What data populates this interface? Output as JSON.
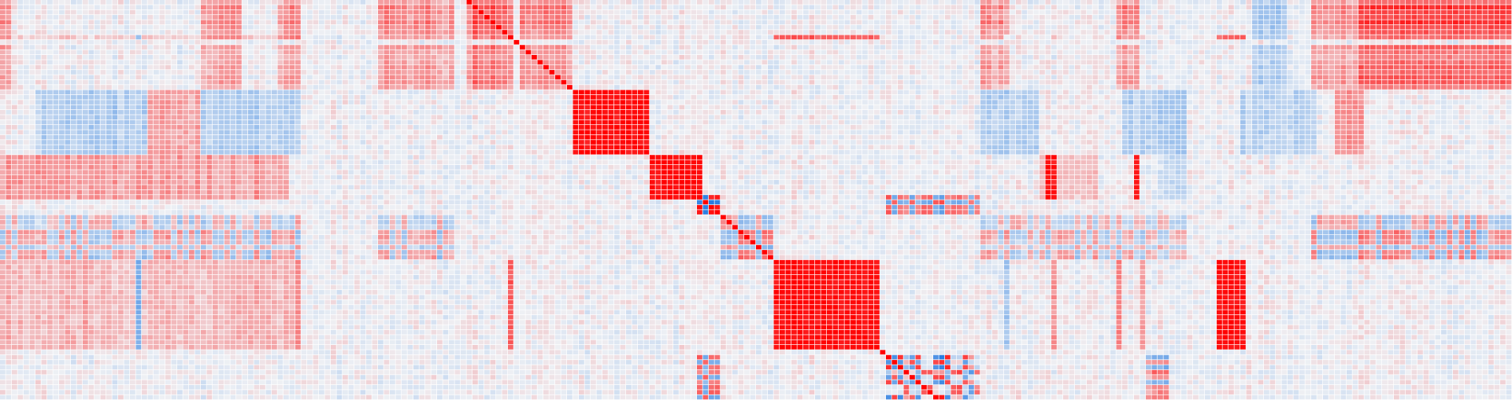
{
  "chart_data": {
    "type": "heatmap",
    "title": "",
    "xlabel": "",
    "ylabel": "",
    "value_range": [
      -1,
      1
    ],
    "n_rows": 80,
    "n_cols": 256,
    "row_variables_start": 79,
    "col_variables_start": 0,
    "grid": true,
    "legend": "none",
    "colors": {
      "negative": "#1f77e0",
      "zero": "#eef0f4",
      "positive": "#ff0000",
      "gridline": "#ffffff"
    },
    "diagonal_value": 1,
    "factors": [
      {
        "members": [
          [
            230,
            255,
            0.9
          ],
          [
            79,
            86,
            0.88
          ],
          [
            166,
            170,
            0.6
          ],
          [
            0,
            1,
            0.6
          ],
          [
            64,
            76,
            0.62
          ],
          [
            34,
            40,
            0.6
          ],
          [
            47,
            50,
            0.6
          ],
          [
            88,
            96,
            0.7
          ],
          [
            189,
            192,
            0.6
          ],
          [
            222,
            229,
            0.6
          ],
          [
            212,
            217,
            -0.5
          ]
        ]
      },
      {
        "members": [
          [
            97,
            109,
            0.97
          ],
          [
            6,
            50,
            -0.3
          ],
          [
            25,
            33,
            0.35
          ],
          [
            226,
            230,
            0.4
          ],
          [
            166,
            175,
            -0.28
          ],
          [
            190,
            200,
            -0.3
          ],
          [
            210,
            222,
            -0.25
          ]
        ]
      },
      {
        "members": [
          [
            110,
            118,
            0.97
          ],
          [
            0,
            48,
            0.38
          ],
          [
            177,
            178,
            0.95
          ],
          [
            192,
            192,
            0.9
          ],
          [
            16,
            20,
            -0.3
          ],
          [
            176,
            185,
            0.2
          ],
          [
            196,
            200,
            -0.2
          ]
        ]
      },
      {
        "members": [
          [
            118,
            121,
            0.95,
            "mixed"
          ],
          [
            150,
            165,
            0.7,
            "mixed"
          ]
        ]
      },
      {
        "members": [
          [
            131,
            148,
            0.97
          ],
          [
            206,
            210,
            0.97
          ],
          [
            50,
            50,
            0.6
          ],
          [
            14,
            14,
            0.55
          ],
          [
            86,
            86,
            0.6
          ],
          [
            23,
            23,
            -0.55
          ],
          [
            0,
            50,
            0.25
          ],
          [
            170,
            170,
            -0.5
          ],
          [
            178,
            178,
            0.5
          ],
          [
            189,
            189,
            0.5
          ],
          [
            193,
            193,
            0.5
          ]
        ]
      },
      {
        "members": [
          [
            150,
            165,
            0.8,
            "mixed"
          ],
          [
            197,
            197,
            0.8
          ],
          [
            194,
            196,
            0.75
          ]
        ]
      },
      {
        "members": [
          [
            122,
            130,
            0.75,
            "mixed"
          ],
          [
            222,
            255,
            0.7,
            "mixed"
          ],
          [
            0,
            50,
            0.5,
            "mixed"
          ],
          [
            64,
            76,
            0.5,
            "mixed"
          ],
          [
            166,
            200,
            0.45,
            "mixed"
          ]
        ]
      }
    ]
  }
}
